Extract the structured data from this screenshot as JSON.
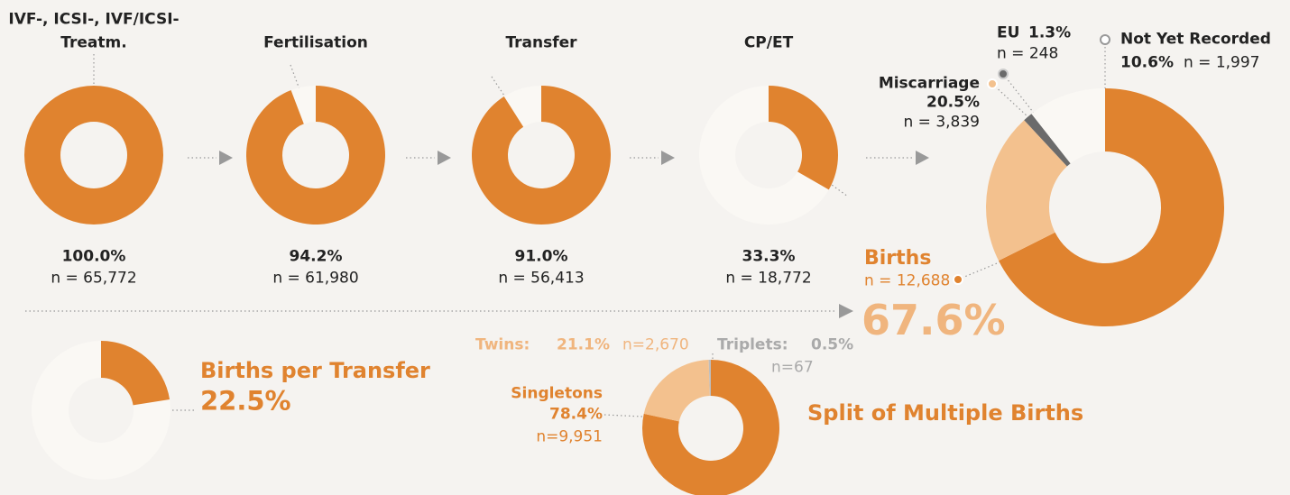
{
  "chart_data": [
    {
      "type": "donut",
      "title": [
        "IVF-, ICSI-, IVF/ICSI-",
        "Treatm."
      ],
      "values": [
        100.0
      ],
      "value_labels": [
        "100.0%"
      ],
      "n_labels": [
        "n = 65,772"
      ],
      "colors": [
        "#e0832f"
      ]
    },
    {
      "type": "donut",
      "title": "Fertilisation",
      "values": [
        94.2
      ],
      "value_labels": [
        "94.2%"
      ],
      "n_labels": [
        "n = 61,980"
      ],
      "colors": [
        "#e0832f"
      ]
    },
    {
      "type": "donut",
      "title": "Transfer",
      "values": [
        91.0
      ],
      "value_labels": [
        "91.0%"
      ],
      "n_labels": [
        "n = 56,413"
      ],
      "colors": [
        "#e0832f"
      ]
    },
    {
      "type": "donut",
      "title": "CP/ET",
      "values": [
        33.3
      ],
      "value_labels": [
        "33.3%"
      ],
      "n_labels": [
        "n = 18,772"
      ],
      "colors": [
        "#e0832f"
      ]
    },
    {
      "type": "donut",
      "categories": [
        "Births",
        "Miscarriage",
        "EU",
        "Not Yet Recorded"
      ],
      "values": [
        67.6,
        20.5,
        1.3,
        10.6
      ],
      "value_labels": [
        "67.6%",
        "20.5%",
        "1.3%",
        "10.6%"
      ],
      "n_labels": [
        "n = 12,688",
        "n = 3,839",
        "n = 248",
        "n = 1,997"
      ],
      "colors": [
        "#e0832f",
        "#f3c18e",
        "#6b6b6b",
        "#faf8f4"
      ]
    },
    {
      "type": "donut",
      "title": "Births per Transfer",
      "values": [
        22.5
      ],
      "value_labels": [
        "22.5%"
      ],
      "colors": [
        "#e0832f"
      ]
    },
    {
      "type": "donut",
      "title": "Split of Multiple Births",
      "categories": [
        "Singletons",
        "Twins:",
        "Triplets:"
      ],
      "values": [
        78.4,
        21.1,
        0.5
      ],
      "value_labels": [
        "78.4%",
        "21.1%",
        "0.5%"
      ],
      "n_labels": [
        "n=9,951",
        "n=2,670",
        "n=67"
      ],
      "colors": [
        "#e0832f",
        "#f3c18e",
        "#bdbdbd"
      ]
    }
  ]
}
